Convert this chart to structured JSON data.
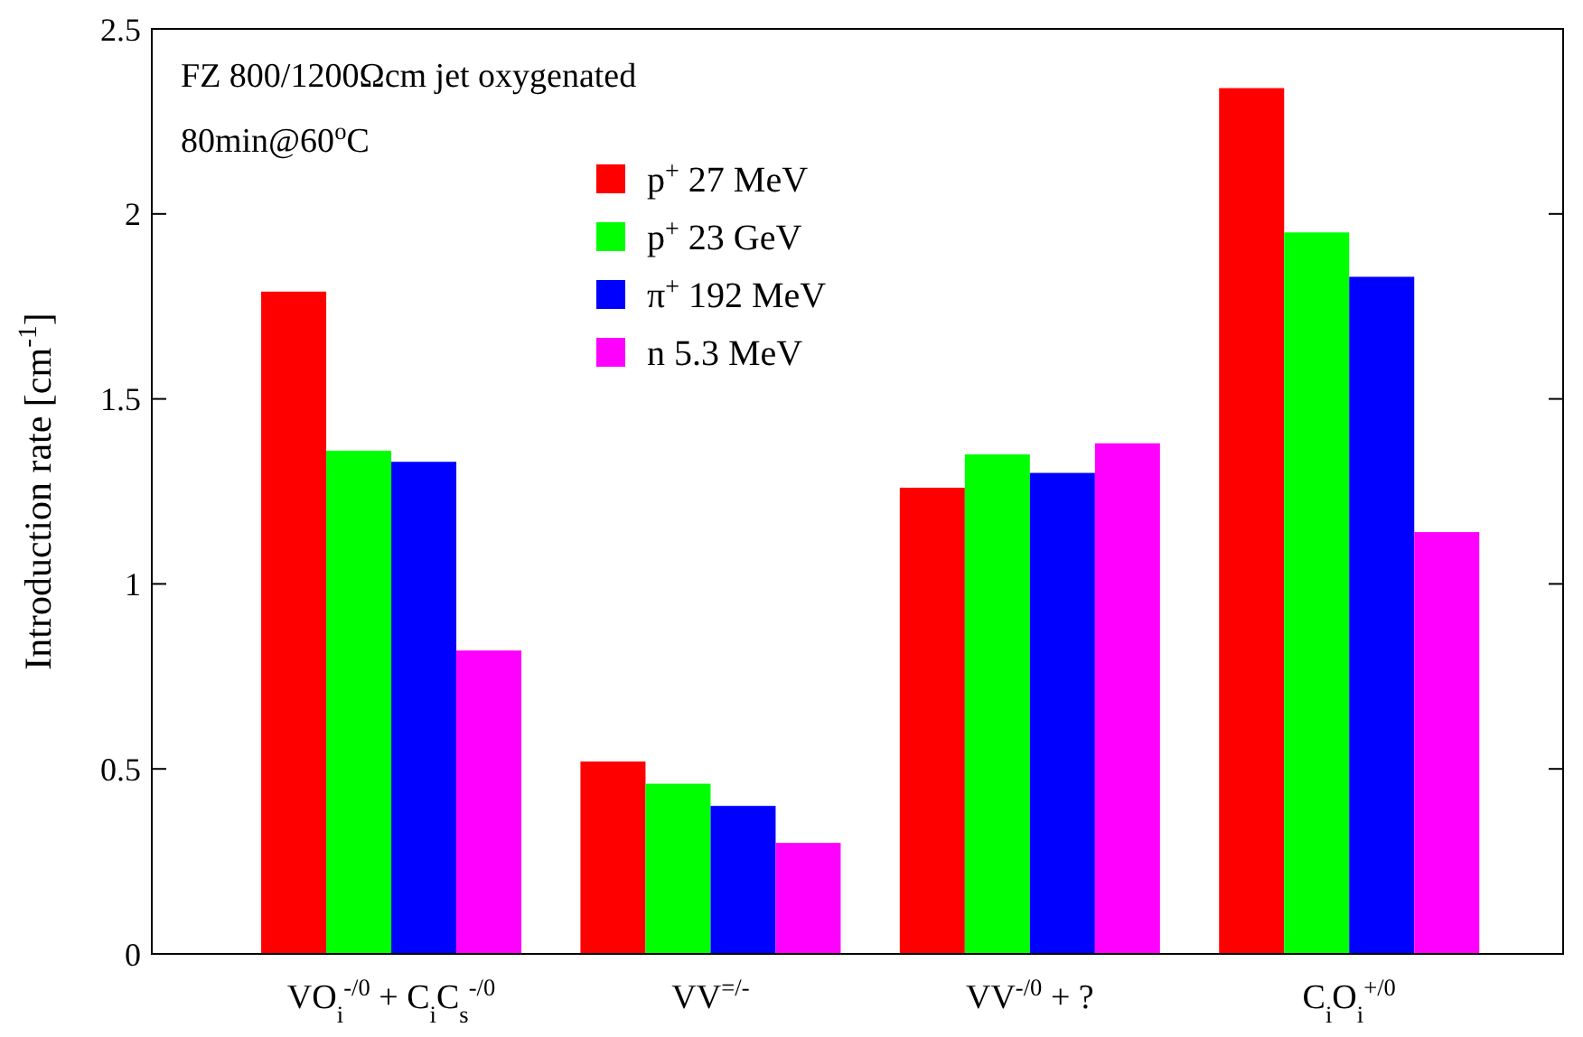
{
  "chart_data": {
    "type": "bar",
    "ylabel": "Introduction rate [cm$^{-1}$]",
    "categories": [
      "VO$_{i}$$^{-/0}$ + C$_{i}$C$_{s}$$^{-/0}$",
      "VV$^{=/-}$",
      "VV$^{-/0}$ + ?",
      "C$_{i}$O$_{i}$$^{+/0}$"
    ],
    "series": [
      {
        "name": "p$^{+}$ 27 MeV",
        "color": "#ff0000",
        "values": [
          1.79,
          0.52,
          1.26,
          2.34
        ]
      },
      {
        "name": "p$^{+}$ 23 GeV",
        "color": "#00ff00",
        "values": [
          1.36,
          0.46,
          1.35,
          1.95
        ]
      },
      {
        "name": "π$^{+}$ 192 MeV",
        "color": "#0000ff",
        "values": [
          1.33,
          0.4,
          1.3,
          1.83
        ]
      },
      {
        "name": "n 5.3 MeV",
        "color": "#ff00ff",
        "values": [
          0.82,
          0.3,
          1.38,
          1.14
        ]
      }
    ],
    "ylim": [
      0,
      2.5
    ],
    "yticks": [
      0,
      0.5,
      1,
      1.5,
      2,
      2.5
    ],
    "grid": false,
    "legend": "top left",
    "annotations": [
      "FZ 800/1200Ωcm jet oxygenated",
      "80min@60$^{o}$C"
    ]
  }
}
